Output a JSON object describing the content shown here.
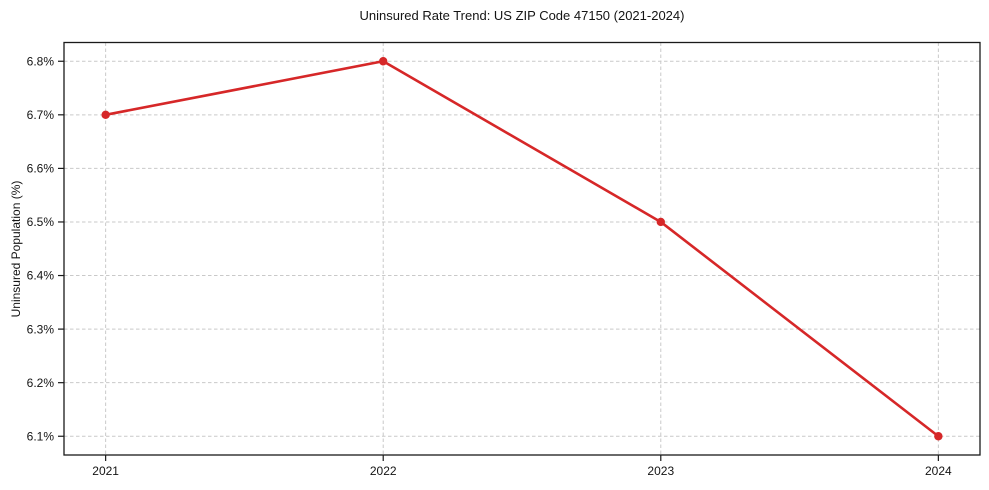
{
  "chart_data": {
    "type": "line",
    "title": "Uninsured Rate Trend: US ZIP Code 47150 (2021-2024)",
    "xlabel": "",
    "ylabel": "Uninsured Population (%)",
    "x": [
      2021,
      2022,
      2023,
      2024
    ],
    "values": [
      6.7,
      6.8,
      6.5,
      6.1
    ],
    "x_tick_labels": [
      "2021",
      "2022",
      "2023",
      "2024"
    ],
    "y_ticks": [
      6.1,
      6.2,
      6.3,
      6.4,
      6.5,
      6.6,
      6.7,
      6.8
    ],
    "y_tick_labels": [
      "6.1%",
      "6.2%",
      "6.3%",
      "6.4%",
      "6.5%",
      "6.6%",
      "6.7%",
      "6.8%"
    ],
    "xlim": [
      2020.85,
      2024.15
    ],
    "ylim": [
      6.065,
      6.835
    ],
    "grid": true,
    "grid_style": "dashed",
    "legend": "none",
    "colors": {
      "line": "#d62728",
      "marker": "#d62728",
      "grid": "#c9c9c9",
      "axis": "#1a1a1a",
      "text": "#141414",
      "background": "#ffffff"
    }
  }
}
